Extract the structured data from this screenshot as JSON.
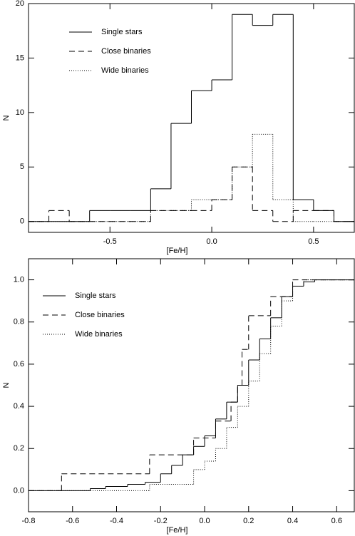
{
  "chart_data": [
    {
      "type": "histogram",
      "xlabel": "[Fe/H]",
      "ylabel": "N",
      "bins": [
        -0.9,
        -0.8,
        -0.7,
        -0.6,
        -0.5,
        -0.4,
        -0.3,
        -0.2,
        -0.1,
        0.0,
        0.1,
        0.2,
        0.3,
        0.4,
        0.5,
        0.6,
        0.7
      ],
      "series": [
        {
          "name": "Single stars",
          "color": "#000000",
          "dash": "solid",
          "values": [
            0,
            0,
            0,
            1,
            1,
            1,
            3,
            9,
            12,
            13,
            19,
            18,
            19,
            2,
            1,
            0
          ]
        },
        {
          "name": "Close binaries",
          "color": "#000000",
          "dash": "dashed",
          "values": [
            0,
            1,
            0,
            0,
            0,
            0,
            1,
            1,
            1,
            2,
            5,
            1,
            0,
            1,
            1,
            0
          ]
        },
        {
          "name": "Wide binaries",
          "color": "#000000",
          "dash": "dotted",
          "values": [
            0,
            0,
            0,
            0,
            0,
            0,
            1,
            1,
            2,
            2,
            5,
            8,
            2,
            0,
            0,
            0
          ]
        }
      ],
      "xlim": [
        -0.9,
        0.7
      ],
      "ylim": [
        -1,
        20
      ],
      "xticks": [
        -0.5,
        {
          "value": 0,
          "label": "0.0"
        },
        0.5
      ],
      "yticks": [
        0,
        5,
        10,
        15,
        20
      ],
      "legend": "upper left"
    },
    {
      "type": "line",
      "step": true,
      "xlabel": "[Fe/H]",
      "ylabel": "N",
      "series": [
        {
          "name": "Single stars",
          "color": "#000000",
          "dash": "solid",
          "x": [
            -0.8,
            -0.52,
            -0.45,
            -0.35,
            -0.27,
            -0.2,
            -0.15,
            -0.1,
            -0.05,
            0.0,
            0.05,
            0.1,
            0.15,
            0.2,
            0.25,
            0.3,
            0.35,
            0.4,
            0.45,
            0.5
          ],
          "values": [
            0,
            0.01,
            0.02,
            0.03,
            0.04,
            0.08,
            0.12,
            0.17,
            0.21,
            0.26,
            0.34,
            0.42,
            0.5,
            0.62,
            0.72,
            0.82,
            0.92,
            0.97,
            0.99,
            1.0
          ]
        },
        {
          "name": "Close binaries",
          "color": "#000000",
          "dash": "dashed",
          "x": [
            -0.8,
            -0.65,
            -0.25,
            -0.05,
            0.05,
            0.12,
            0.15,
            0.17,
            0.2,
            0.3,
            0.4
          ],
          "values": [
            0,
            0.08,
            0.17,
            0.25,
            0.33,
            0.42,
            0.5,
            0.67,
            0.83,
            0.92,
            1.0
          ]
        },
        {
          "name": "Wide binaries",
          "color": "#000000",
          "dash": "dotted",
          "x": [
            -0.8,
            -0.25,
            -0.05,
            0.0,
            0.05,
            0.1,
            0.15,
            0.2,
            0.25,
            0.3,
            0.35,
            0.4,
            0.45
          ],
          "values": [
            0,
            0.03,
            0.1,
            0.14,
            0.2,
            0.3,
            0.4,
            0.52,
            0.65,
            0.78,
            0.9,
            0.97,
            1.0
          ]
        }
      ],
      "xlim": [
        -0.8,
        0.68
      ],
      "ylim": [
        -0.1,
        1.1
      ],
      "xticks": [
        -0.8,
        -0.6,
        -0.4,
        -0.2,
        {
          "value": 0,
          "label": "0.0"
        },
        0.2,
        0.4,
        0.6
      ],
      "yticks": [
        {
          "value": 0,
          "label": "0.0"
        },
        0.2,
        0.4,
        0.6,
        0.8,
        {
          "value": 1,
          "label": "1.0"
        }
      ],
      "legend": "upper left"
    }
  ]
}
